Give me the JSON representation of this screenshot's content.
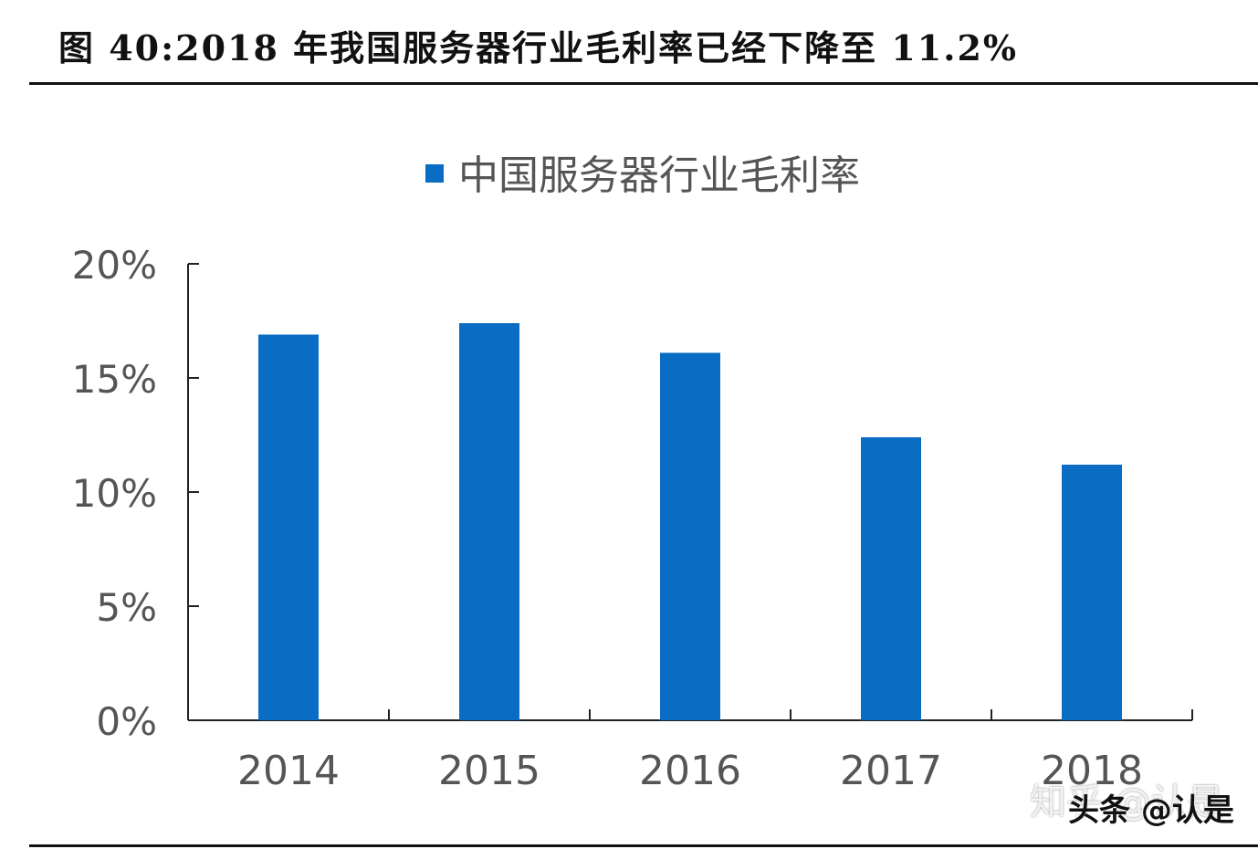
{
  "figure_title": "图 40:2018 年我国服务器行业毛利率已经下降至 11.2%",
  "watermarks": {
    "zhihu": "知乎 @认是",
    "toutiao": "头条 @认是"
  },
  "colors": {
    "bar": "#0a6cc2",
    "axis": "#222222",
    "tick_text": "#555555"
  },
  "chart_data": {
    "type": "bar",
    "categories": [
      "2014",
      "2015",
      "2016",
      "2017",
      "2018"
    ],
    "series": [
      {
        "name": "中国服务器行业毛利率",
        "values": [
          16.9,
          17.4,
          16.1,
          12.4,
          11.2
        ]
      }
    ],
    "ylim": [
      0,
      20
    ],
    "yticks": [
      0,
      5,
      10,
      15,
      20
    ],
    "ytick_labels": [
      "0%",
      "5%",
      "10%",
      "15%",
      "20%"
    ],
    "legend_position": "top-center",
    "grid": false,
    "title": "",
    "xlabel": "",
    "ylabel": ""
  }
}
